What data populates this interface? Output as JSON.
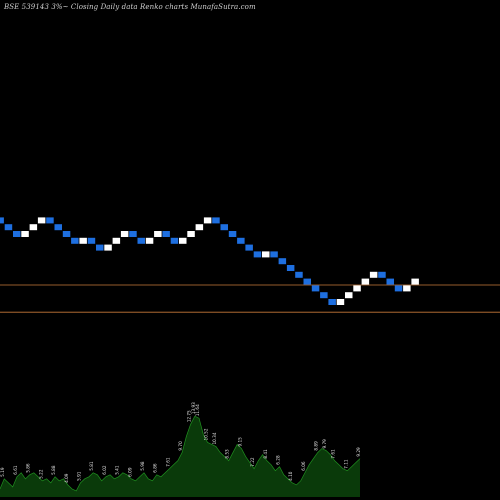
{
  "chart_data": {
    "type": "renko",
    "title": "BSE 539143 3%~  Closing Daily data  Renko  charts MunafaSutra.com",
    "colors": {
      "background": "#000000",
      "up_brick": "#ffffff",
      "down_brick": "#1e6fe0",
      "reference_line": "#c87a3a",
      "volume_fill": "#0a3a0a",
      "volume_line": "#1f8f1f",
      "label": "#e6e6e6"
    },
    "renko": {
      "start_level": 20,
      "bricks": [
        -1,
        -1,
        -1,
        1,
        1,
        1,
        -1,
        -1,
        -1,
        -1,
        1,
        -1,
        -1,
        1,
        1,
        1,
        -1,
        -1,
        1,
        1,
        -1,
        -1,
        1,
        1,
        1,
        1,
        -1,
        -1,
        -1,
        -1,
        -1,
        -1,
        1,
        -1,
        -1,
        -1,
        -1,
        -1,
        -1,
        -1,
        -1,
        1,
        1,
        1,
        1,
        1,
        -1,
        -1,
        -1,
        1,
        1
      ]
    },
    "reference_levels": [
      9,
      5
    ],
    "volume": {
      "values": [
        4,
        9,
        7,
        5,
        10,
        12,
        9,
        11,
        12,
        10,
        8,
        9,
        7,
        10,
        8,
        9,
        6,
        4,
        3,
        7,
        9,
        10,
        12,
        11,
        8,
        10,
        11,
        9,
        10,
        12,
        11,
        9,
        8,
        10,
        12,
        9,
        8,
        11,
        10,
        12,
        14,
        16,
        18,
        22,
        30,
        36,
        40,
        39,
        31,
        27,
        26,
        25,
        22,
        20,
        18,
        22,
        26,
        24,
        20,
        17,
        14,
        18,
        21,
        18,
        16,
        13,
        15,
        11,
        9,
        7,
        6,
        8,
        12,
        16,
        19,
        22,
        24,
        23,
        21,
        18,
        16,
        14,
        13,
        15,
        17,
        19
      ],
      "labels": [
        {
          "i": 1,
          "text": "5.19"
        },
        {
          "i": 4,
          "text": "6.61"
        },
        {
          "i": 7,
          "text": "5.86"
        },
        {
          "i": 10,
          "text": "5.22"
        },
        {
          "i": 13,
          "text": "5.88"
        },
        {
          "i": 16,
          "text": "4.09"
        },
        {
          "i": 19,
          "text": "5.91"
        },
        {
          "i": 22,
          "text": "5.81"
        },
        {
          "i": 25,
          "text": "6.02"
        },
        {
          "i": 28,
          "text": "5.41"
        },
        {
          "i": 31,
          "text": "6.09"
        },
        {
          "i": 34,
          "text": "5.98"
        },
        {
          "i": 37,
          "text": "6.86"
        },
        {
          "i": 40,
          "text": "7.61"
        },
        {
          "i": 43,
          "text": "9.70"
        },
        {
          "i": 45,
          "text": "12.75"
        },
        {
          "i": 46,
          "text": "13.93"
        },
        {
          "i": 47,
          "text": "11.64"
        },
        {
          "i": 49,
          "text": "10.52"
        },
        {
          "i": 51,
          "text": "10.34"
        },
        {
          "i": 54,
          "text": "8.53"
        },
        {
          "i": 57,
          "text": "9.15"
        },
        {
          "i": 60,
          "text": "7.22"
        },
        {
          "i": 63,
          "text": "8.41"
        },
        {
          "i": 66,
          "text": "6.28"
        },
        {
          "i": 69,
          "text": "4.10"
        },
        {
          "i": 72,
          "text": "6.06"
        },
        {
          "i": 75,
          "text": "8.89"
        },
        {
          "i": 77,
          "text": "9.79"
        },
        {
          "i": 79,
          "text": "7.61"
        },
        {
          "i": 82,
          "text": "7.11"
        },
        {
          "i": 85,
          "text": "9.29"
        }
      ]
    }
  }
}
